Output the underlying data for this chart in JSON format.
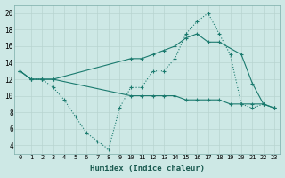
{
  "xlabel": "Humidex (Indice chaleur)",
  "background_color": "#cde8e5",
  "grid_color": "#b8d4d0",
  "line_color": "#1a7a6e",
  "xlim": [
    -0.5,
    23.5
  ],
  "ylim": [
    3,
    21
  ],
  "yticks": [
    4,
    6,
    8,
    10,
    12,
    14,
    16,
    18,
    20
  ],
  "xticks": [
    0,
    1,
    2,
    3,
    4,
    5,
    6,
    7,
    8,
    9,
    10,
    11,
    12,
    13,
    14,
    15,
    16,
    17,
    18,
    19,
    20,
    21,
    22,
    23
  ],
  "line1_x": [
    0,
    1,
    2,
    3,
    4,
    5,
    6,
    7,
    8,
    9,
    10,
    11,
    12,
    13,
    14,
    15,
    16,
    17,
    18,
    19,
    20,
    21,
    22,
    23
  ],
  "line1_y": [
    13,
    12,
    12,
    11,
    9.5,
    7.5,
    5.5,
    4.5,
    3.5,
    8.5,
    11,
    11,
    13,
    13,
    14.5,
    17.5,
    19,
    20,
    17.5,
    15,
    9,
    8.5,
    9,
    8.5
  ],
  "line2_x": [
    0,
    1,
    2,
    3,
    10,
    11,
    12,
    13,
    14,
    15,
    16,
    17,
    18,
    20,
    21,
    22,
    23
  ],
  "line2_y": [
    13,
    12,
    12,
    12,
    14.5,
    14.5,
    15,
    15.5,
    16,
    17,
    17.5,
    16.5,
    16.5,
    15,
    11.5,
    9,
    8.5
  ],
  "line3_x": [
    0,
    1,
    2,
    3,
    10,
    11,
    12,
    13,
    14,
    15,
    16,
    17,
    18,
    19,
    20,
    21,
    22,
    23
  ],
  "line3_y": [
    13,
    12,
    12,
    12,
    10,
    10,
    10,
    10,
    10,
    9.5,
    9.5,
    9.5,
    9.5,
    9,
    9,
    9,
    9,
    8.5
  ]
}
